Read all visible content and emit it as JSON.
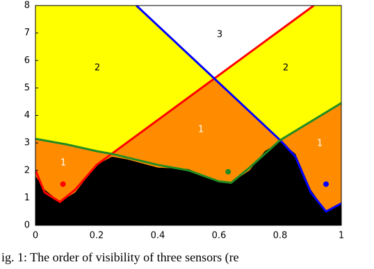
{
  "chart_data": {
    "type": "region-plot",
    "xlim": [
      0,
      1
    ],
    "xticks": [
      0,
      0.2,
      0.4,
      0.6,
      0.8,
      1
    ],
    "ylim": [
      0,
      8
    ],
    "yticks": [
      0,
      1,
      2,
      3,
      4,
      5,
      6,
      7,
      8
    ],
    "background_color": "#ffff00",
    "region_color": "#ff8c00",
    "top_color": "#ffffff",
    "terrain": {
      "color": "#000000",
      "x": [
        0,
        0.03,
        0.08,
        0.13,
        0.2,
        0.25,
        0.3,
        0.4,
        0.5,
        0.55,
        0.6,
        0.64,
        0.7,
        0.75,
        0.8,
        0.85,
        0.9,
        0.95,
        1
      ],
      "values": [
        1.8,
        1.3,
        0.85,
        1.2,
        2.2,
        2.5,
        2.4,
        2.1,
        2.05,
        1.8,
        1.6,
        1.55,
        2.0,
        2.7,
        3.05,
        2.6,
        1.3,
        0.5,
        0.8
      ]
    },
    "series": [
      {
        "color": "#ff0000",
        "x": [
          0,
          0.03,
          0.08,
          0.13,
          0.2,
          0.91
        ],
        "values": [
          2.0,
          1.2,
          0.85,
          1.3,
          2.2,
          8
        ]
      },
      {
        "color": "#0000ff",
        "x": [
          0.33,
          0.8,
          0.85,
          0.9,
          0.95,
          1
        ],
        "values": [
          8,
          3.1,
          2.5,
          1.2,
          0.5,
          0.8
        ]
      },
      {
        "color": "#228b22",
        "x": [
          0,
          0.1,
          0.2,
          0.25,
          0.4,
          0.5,
          0.6,
          0.64,
          0.7,
          0.8,
          1
        ],
        "values": [
          3.15,
          2.95,
          2.7,
          2.6,
          2.2,
          2.0,
          1.6,
          1.55,
          2.1,
          3.1,
          4.45
        ]
      }
    ],
    "sensors": {
      "x": [
        0.09,
        0.63,
        0.95
      ],
      "values": [
        1.5,
        1.95,
        1.5
      ],
      "colors": [
        "#ff0000",
        "#228b22",
        "#0000ff"
      ]
    },
    "annotations": [
      "3",
      "2",
      "2",
      "1",
      "1",
      "1"
    ],
    "caption": "ig. 1: The order of visibility of three sensors (re"
  }
}
